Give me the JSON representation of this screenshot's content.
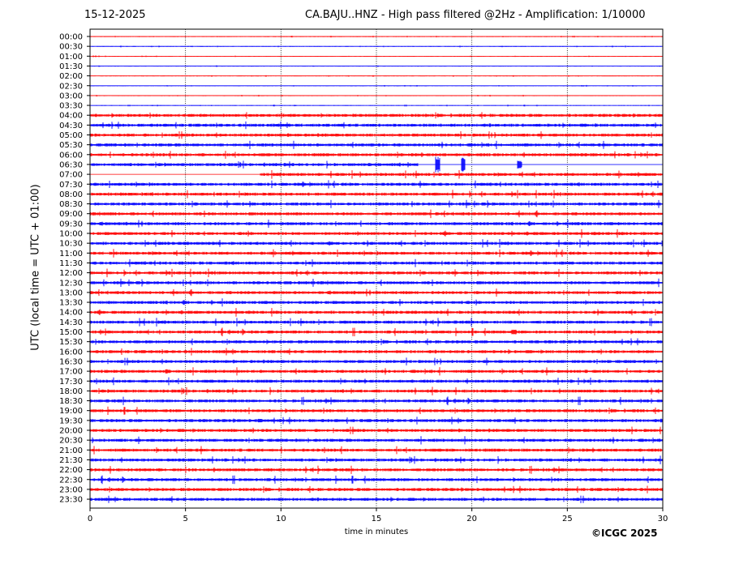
{
  "header": {
    "date": "15-12-2025",
    "title": "CA.BAJU..HNZ - High pass filtered @2Hz - Amplification: 1/10000"
  },
  "footer": {
    "copyright": "©ICGC 2025"
  },
  "chart_data": {
    "type": "line",
    "title": "CA.BAJU..HNZ - High pass filtered @2Hz - Amplification: 1/10000",
    "xlabel": "time in minutes",
    "ylabel": "UTC (local time = UTC + 01:00)",
    "xlim": [
      0,
      30
    ],
    "x_ticks": [
      0,
      5,
      10,
      15,
      20,
      25,
      30
    ],
    "grid": "vertical dotted at x ticks",
    "rows": [
      "00:00",
      "00:30",
      "01:00",
      "01:30",
      "02:00",
      "02:30",
      "03:00",
      "03:30",
      "04:00",
      "04:30",
      "05:00",
      "05:30",
      "06:00",
      "06:30",
      "07:00",
      "07:30",
      "08:00",
      "08:30",
      "09:00",
      "09:30",
      "10:00",
      "10:30",
      "11:00",
      "11:30",
      "12:00",
      "12:30",
      "13:00",
      "13:30",
      "14:00",
      "14:30",
      "15:00",
      "15:30",
      "16:00",
      "16:30",
      "17:00",
      "17:30",
      "18:00",
      "18:30",
      "19:00",
      "19:30",
      "20:00",
      "20:30",
      "21:00",
      "21:30",
      "22:00",
      "22:30",
      "23:00",
      "23:30"
    ],
    "row_colors": [
      "#ff0000",
      "#0000ff"
    ],
    "data_gap": {
      "from_row": "06:30",
      "x_start": 17.2,
      "to_row": "07:00",
      "x_end": 8.9
    },
    "events": [
      {
        "row": "06:30",
        "x": 18.2,
        "amplitude": 1.6
      },
      {
        "row": "06:30",
        "x": 19.55,
        "amplitude": 1.5
      },
      {
        "row": "06:30",
        "x": 22.5,
        "amplitude": 0.8
      },
      {
        "row": "15:00",
        "x": 22.2,
        "amplitude": 0.5
      },
      {
        "row": "17:00",
        "x": 4.05,
        "amplitude": 0.4
      },
      {
        "row": "19:30",
        "x": 8.9,
        "amplitude": 0.35
      },
      {
        "row": "14:30",
        "x": 13.3,
        "amplitude": 0.3
      },
      {
        "row": "10:30",
        "x": 12.6,
        "amplitude": 0.3
      }
    ],
    "noise_level": {
      "quiet_until_row": "03:30",
      "quiet": 0.04,
      "active": 0.22
    }
  }
}
